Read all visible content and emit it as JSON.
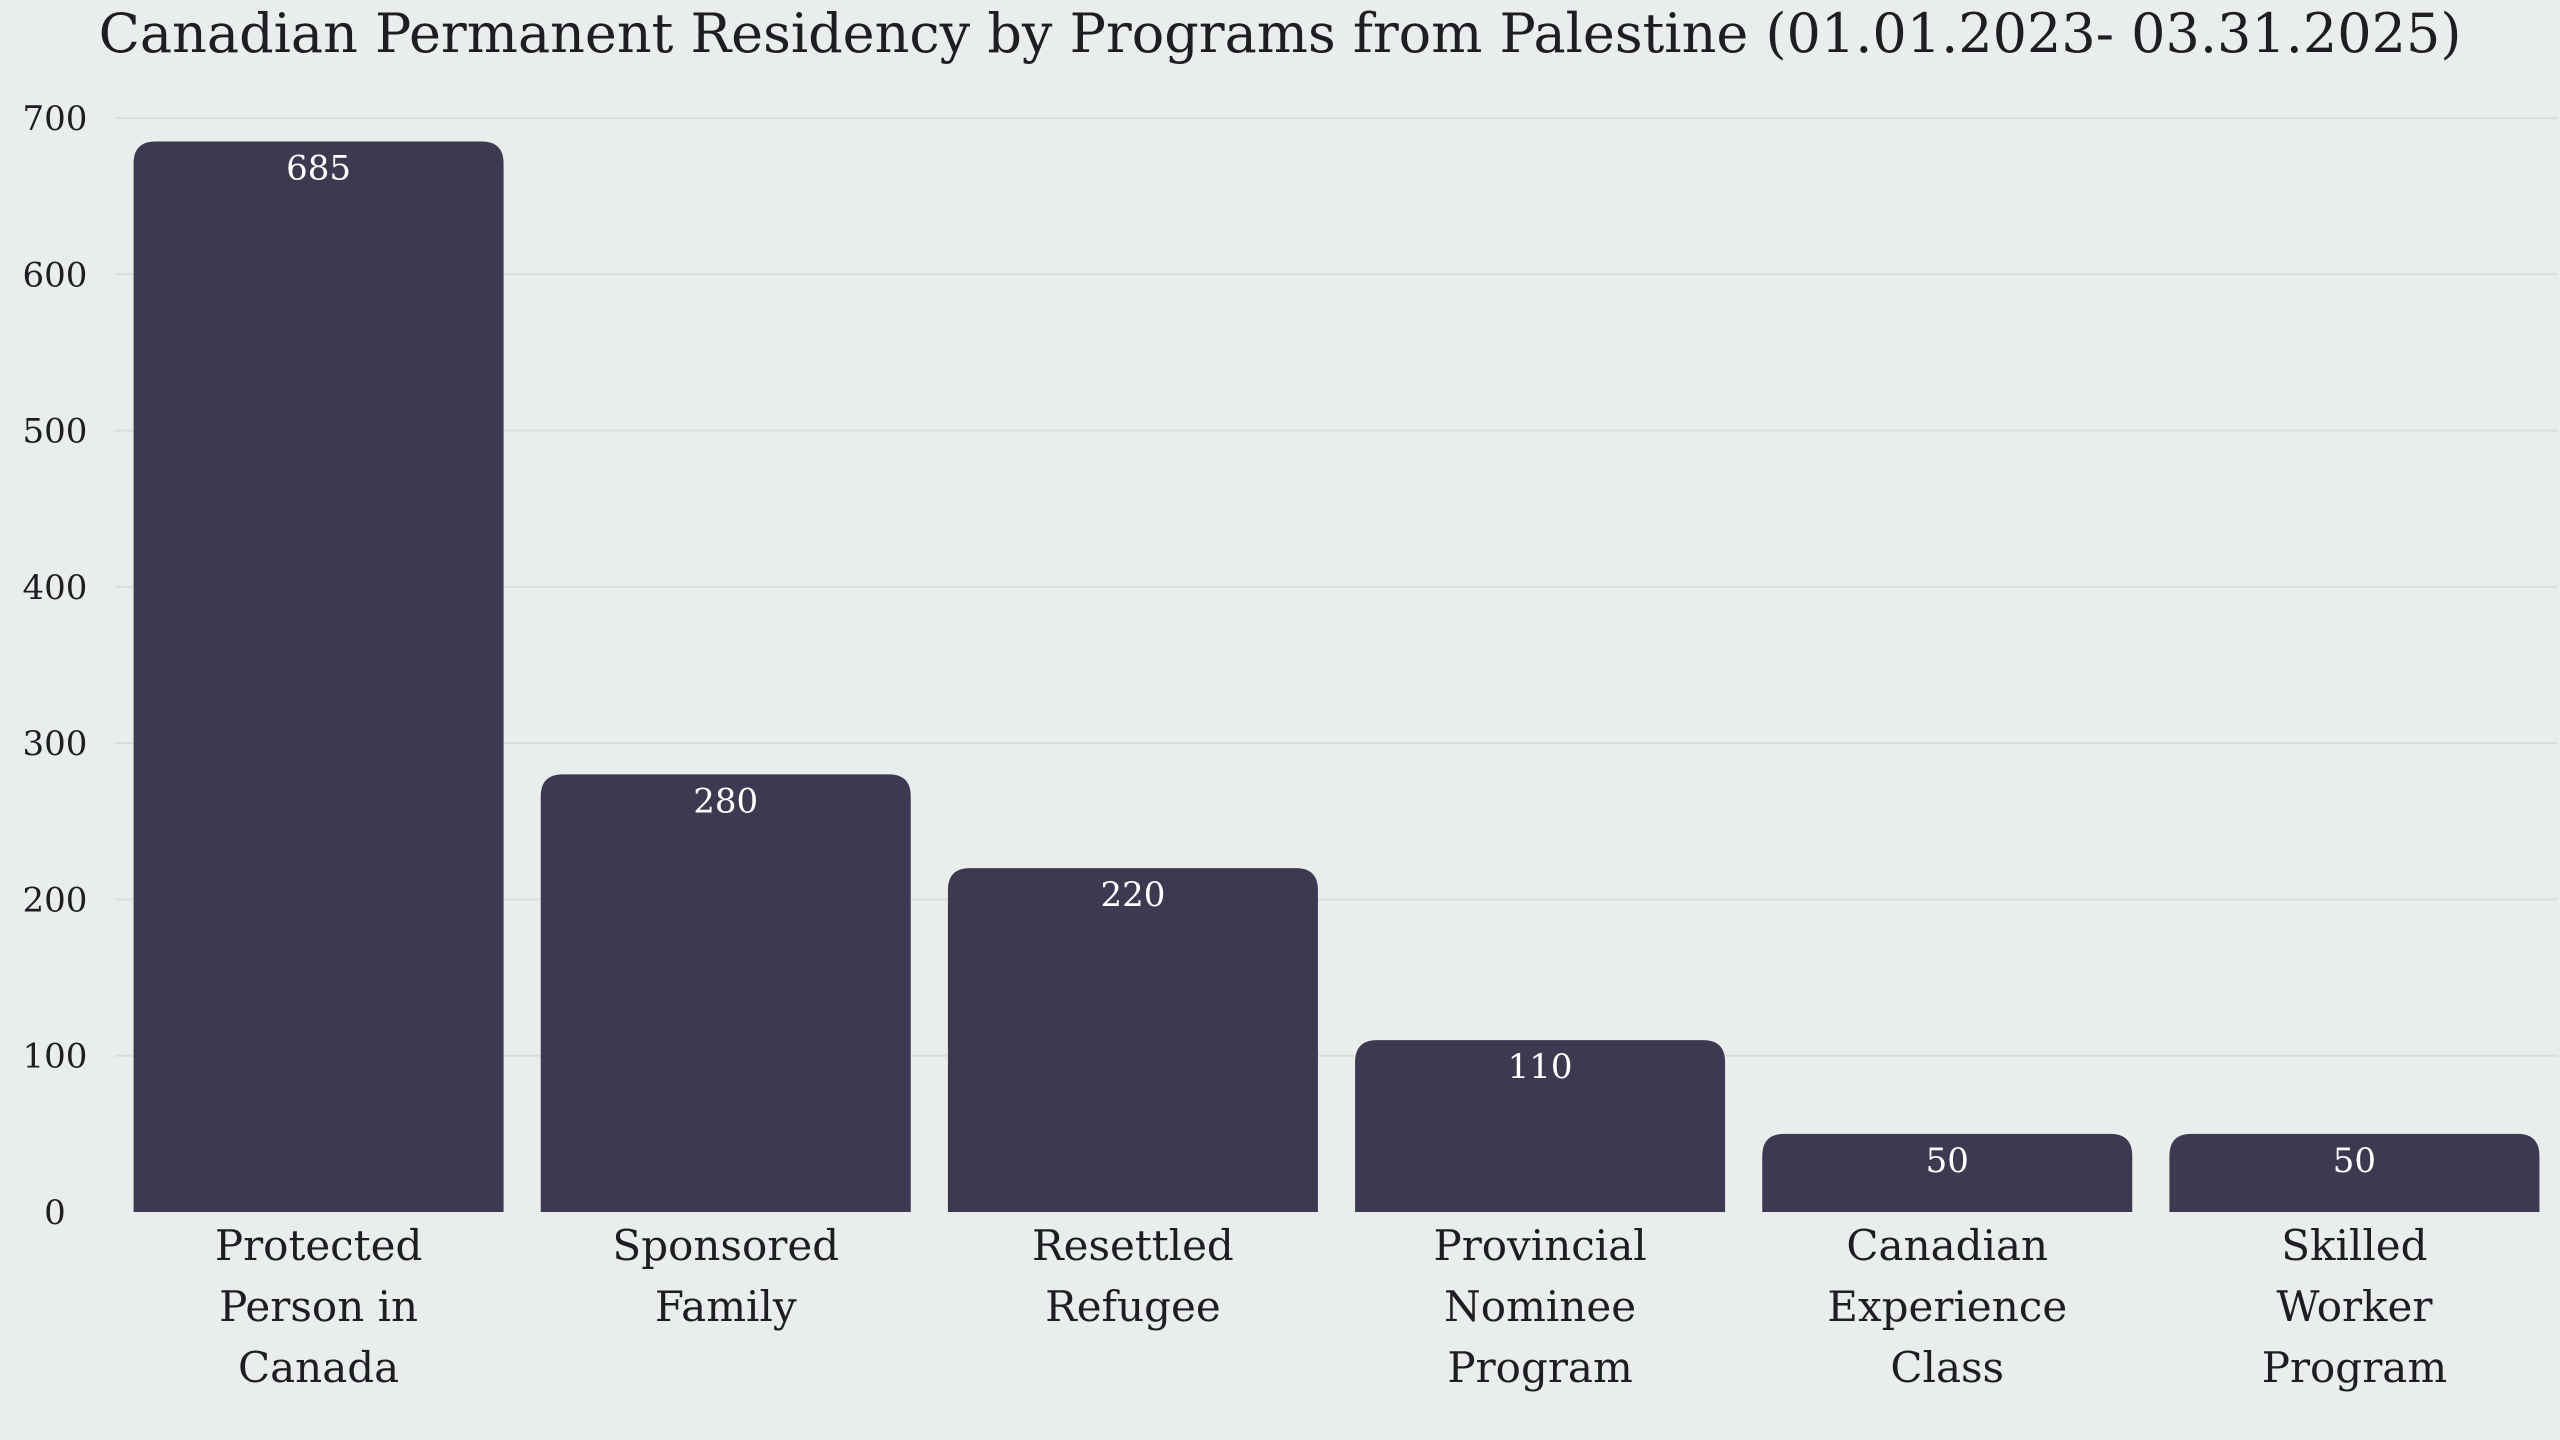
{
  "colors": {
    "background": "#e9edeb",
    "bar": "#3d3950",
    "grid": "#d9dedc",
    "text": "#1f1d24",
    "data_label": "#ffffff"
  },
  "chart_data": {
    "type": "bar",
    "title": "Canadian Permanent Residency by Programs from Palestine (01.01.2023- 03.31.2025)",
    "xlabel": "",
    "ylabel": "",
    "categories": [
      [
        "Protected",
        "Person in",
        "Canada"
      ],
      [
        "Sponsored",
        "Family"
      ],
      [
        "Resettled",
        "Refugee"
      ],
      [
        "Provincial",
        "Nominee",
        "Program"
      ],
      [
        "Canadian",
        "Experience",
        "Class"
      ],
      [
        "Skilled",
        "Worker",
        "Program"
      ]
    ],
    "values": [
      685,
      280,
      220,
      110,
      50,
      50
    ],
    "ylim": [
      0,
      700
    ],
    "yticks": [
      0,
      100,
      200,
      300,
      400,
      500,
      600,
      700
    ],
    "grid": true,
    "data_labels": true
  }
}
